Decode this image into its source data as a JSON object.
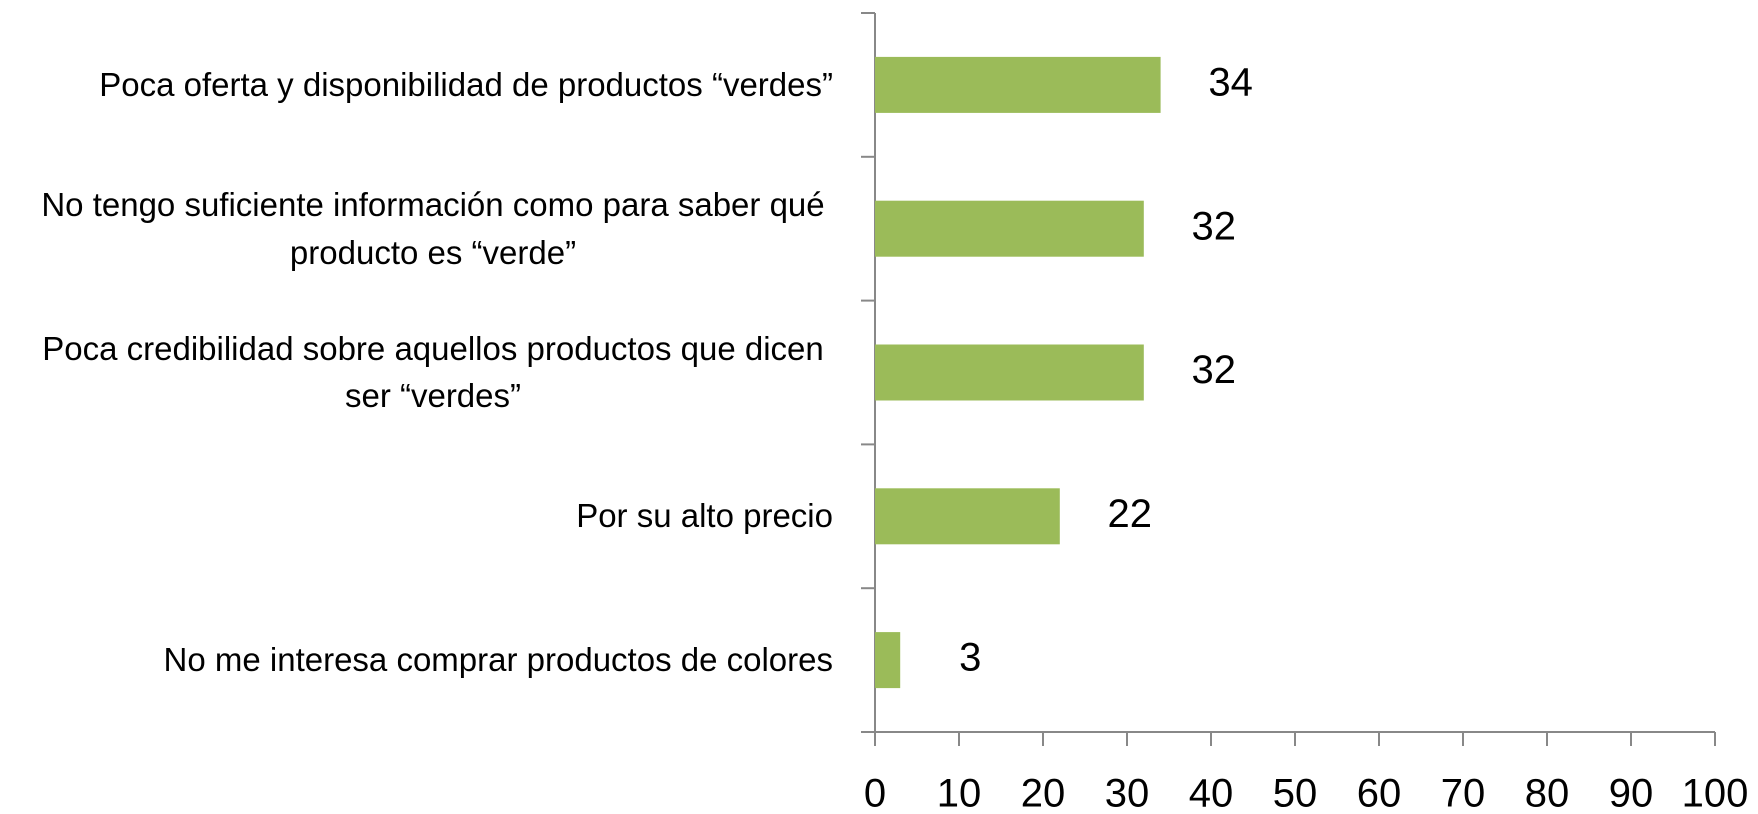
{
  "chart_data": {
    "type": "bar",
    "orientation": "horizontal",
    "categories": [
      "Poca oferta y disponibilidad de productos “verdes”",
      "No tengo suficiente información como para saber qué producto es “verde”",
      "Poca credibilidad sobre aquellos productos que dicen ser “verdes”",
      "Por su alto precio",
      "No me interesa comprar productos de colores"
    ],
    "values": [
      34,
      32,
      32,
      22,
      3
    ],
    "color": "#9bbb59",
    "xlim": [
      0,
      100
    ],
    "xticks": [
      0,
      10,
      20,
      30,
      40,
      50,
      60,
      70,
      80,
      90,
      100
    ],
    "grid": false
  }
}
